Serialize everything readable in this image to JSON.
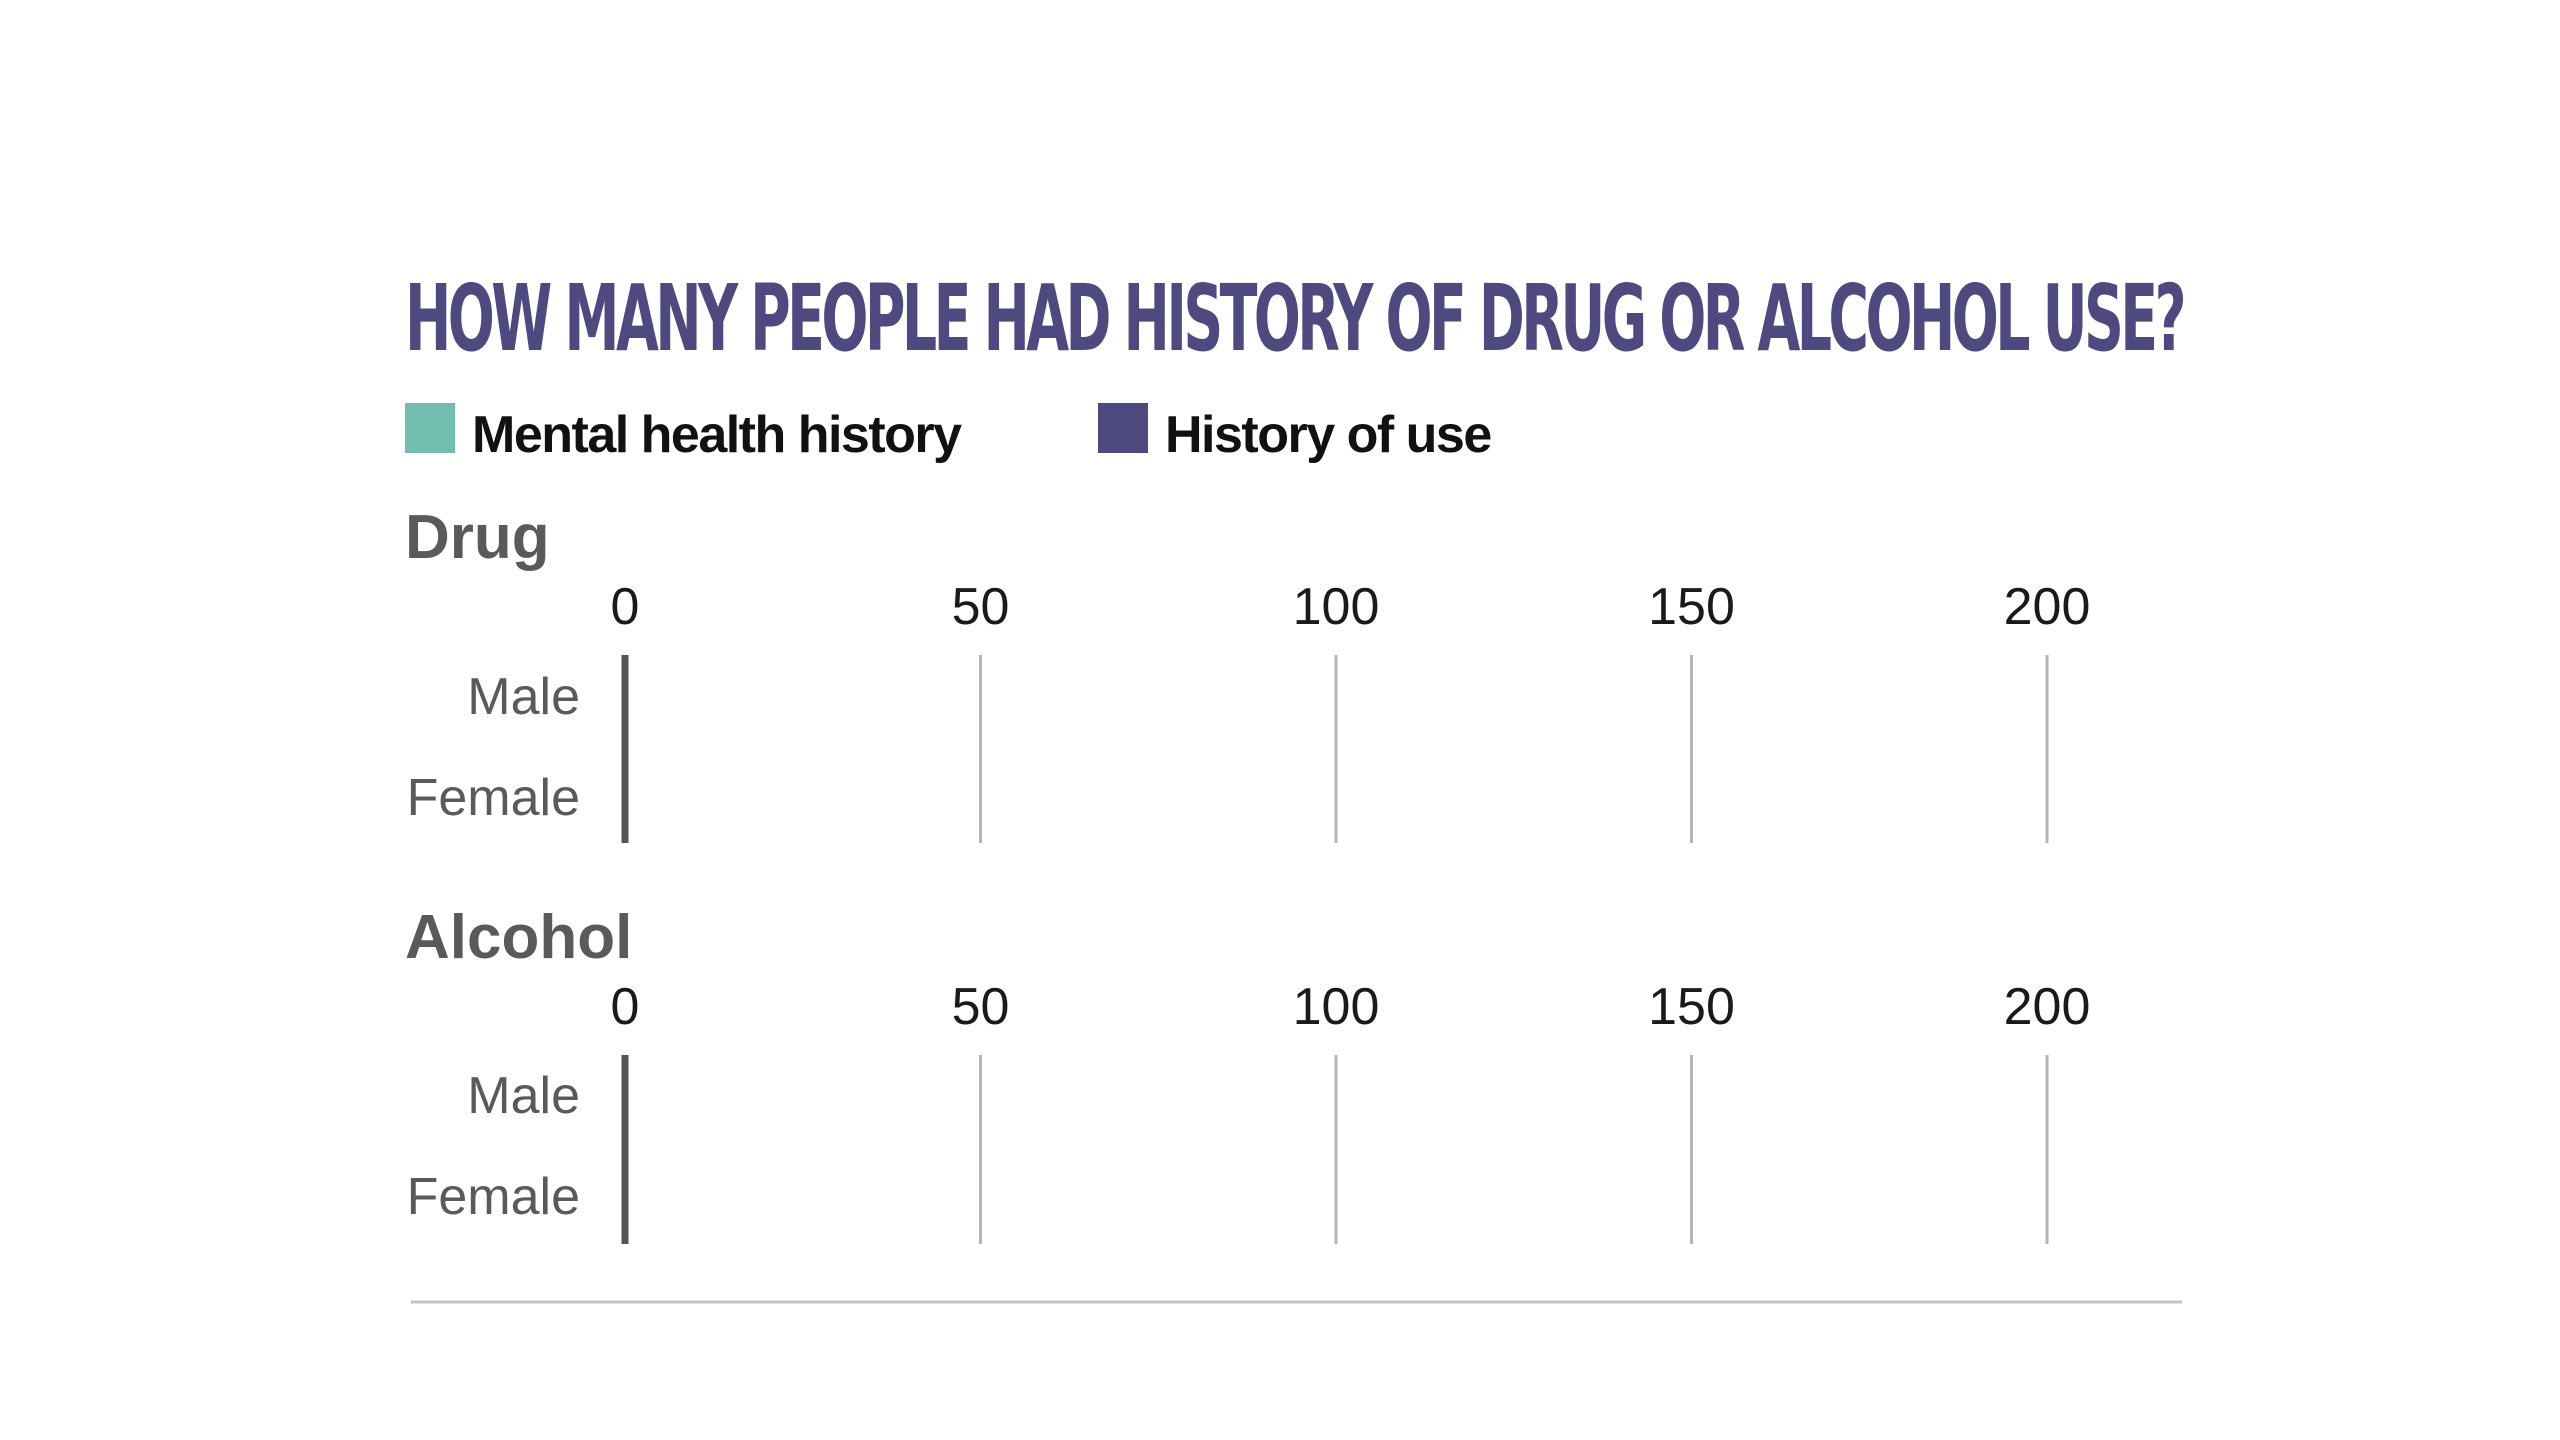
{
  "chart_data": {
    "type": "bar",
    "orientation": "horizontal",
    "title": "HOW MANY PEOPLE HAD HISTORY OF DRUG OR ALCOHOL USE?",
    "legend": [
      {
        "name": "Mental health history",
        "color": "#72bdb0"
      },
      {
        "name": "History of use",
        "color": "#4e4a80"
      }
    ],
    "xlim": [
      0,
      200
    ],
    "ticks": [
      0,
      50,
      100,
      150,
      200
    ],
    "tick_labels": [
      "0",
      "50",
      "100",
      "150",
      "200"
    ],
    "grid": true,
    "panels": [
      {
        "title": "Drug",
        "categories": [
          "Male",
          "Female"
        ],
        "series": [
          {
            "name": "Mental health history",
            "values": [
              0,
              0
            ]
          },
          {
            "name": "History of use",
            "values": [
              0,
              0
            ]
          }
        ]
      },
      {
        "title": "Alcohol",
        "categories": [
          "Male",
          "Female"
        ],
        "series": [
          {
            "name": "Mental health history",
            "values": [
              0,
              0
            ]
          },
          {
            "name": "History of use",
            "values": [
              0,
              0
            ]
          }
        ]
      }
    ]
  },
  "colors": {
    "title": "#4e4a80",
    "mental_health": "#72bdb0",
    "history_of_use": "#4e4a80",
    "gridline": "#b5b5b5",
    "axis": "#555555"
  }
}
